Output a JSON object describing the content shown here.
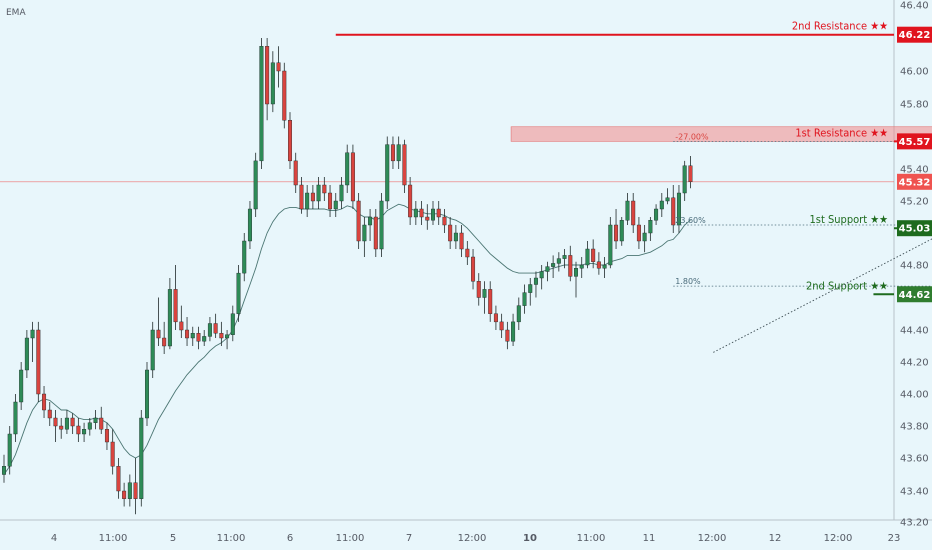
{
  "chart_data": {
    "type": "candlestick",
    "indicator_label": "EMA",
    "ylim": [
      43.2,
      46.4
    ],
    "y_ticks": [
      "46.40",
      "46.00",
      "45.80",
      "45.40",
      "45.20",
      "44.80",
      "44.40",
      "44.20",
      "44.00",
      "43.80",
      "43.60",
      "43.40",
      "43.20"
    ],
    "x_ticks": [
      "4",
      "11:00",
      "5",
      "11:00",
      "6",
      "11:00",
      "7",
      "12:00",
      "10",
      "11:00",
      "11",
      "12:00",
      "12",
      "12:00",
      "23"
    ],
    "x_ticks_bold": [
      "10"
    ],
    "current_price": {
      "value": 45.32,
      "label": "45.32",
      "color": "#ef5350"
    },
    "levels": [
      {
        "name": "2nd Resistance",
        "label": "2nd Resistance ★★",
        "value": 46.22,
        "value_label": "46.22",
        "color": "#e0141e",
        "x_from": 58,
        "badge_color": "#e0141e"
      },
      {
        "name": "1st Resistance",
        "label": "1st Resistance ★★",
        "value": 45.57,
        "value_label": "45.57",
        "color": "#e0141e",
        "x_from": 170,
        "badge_color": "#e0141e"
      },
      {
        "name": "1st Support",
        "label": "1st Support ★★",
        "value": 45.03,
        "value_label": "45.03",
        "color": "#1e6b1e",
        "x_from": 170,
        "badge_color": "#1e6b1e"
      },
      {
        "name": "2nd Support",
        "label": "2nd Support ★★",
        "value": 44.62,
        "value_label": "44.62",
        "color": "#1e6b1e",
        "x_from": 152,
        "badge_color": "#2f7d2f"
      }
    ],
    "zone": {
      "x_from": 89,
      "x_to": 212,
      "top": 45.66,
      "bottom": 45.57,
      "color": "#f28b8b"
    },
    "fib_lines": [
      {
        "label": "-27.00%",
        "value": 45.57,
        "x_from": 117,
        "x_to": 170
      },
      {
        "label": "23.60%",
        "value": 45.05,
        "x_from": 117,
        "x_to": 200
      },
      {
        "label": "1.80%",
        "value": 44.67,
        "x_from": 117,
        "x_to": 200
      }
    ],
    "trendline": {
      "x1": 124,
      "y1": 44.26,
      "x2": 175,
      "y2": 45.2
    },
    "arrow": {
      "x1": 170.5,
      "y1": 45.03,
      "x2": 174.5,
      "y2": 45.58
    },
    "candles": [
      [
        0,
        43.5,
        43.62,
        43.45,
        43.55
      ],
      [
        1,
        43.55,
        43.8,
        43.5,
        43.75
      ],
      [
        2,
        43.75,
        44.0,
        43.7,
        43.95
      ],
      [
        3,
        43.95,
        44.2,
        43.9,
        44.15
      ],
      [
        4,
        44.15,
        44.4,
        44.1,
        44.35
      ],
      [
        5,
        44.35,
        44.45,
        44.2,
        44.4
      ],
      [
        6,
        44.4,
        44.45,
        43.95,
        44.0
      ],
      [
        7,
        44.0,
        44.05,
        43.85,
        43.9
      ],
      [
        8,
        43.9,
        43.95,
        43.8,
        43.85
      ],
      [
        9,
        43.85,
        43.9,
        43.7,
        43.8
      ],
      [
        10,
        43.8,
        43.85,
        43.72,
        43.78
      ],
      [
        11,
        43.78,
        43.9,
        43.75,
        43.85
      ],
      [
        12,
        43.85,
        43.88,
        43.75,
        43.8
      ],
      [
        13,
        43.8,
        43.85,
        43.7,
        43.75
      ],
      [
        14,
        43.75,
        43.82,
        43.7,
        43.78
      ],
      [
        15,
        43.78,
        43.85,
        43.74,
        43.82
      ],
      [
        16,
        43.82,
        43.9,
        43.78,
        43.85
      ],
      [
        17,
        43.85,
        43.92,
        43.75,
        43.78
      ],
      [
        18,
        43.78,
        43.82,
        43.65,
        43.7
      ],
      [
        19,
        43.7,
        43.78,
        43.5,
        43.55
      ],
      [
        20,
        43.55,
        43.6,
        43.35,
        43.4
      ],
      [
        21,
        43.4,
        43.45,
        43.3,
        43.35
      ],
      [
        22,
        43.35,
        43.5,
        43.3,
        43.45
      ],
      [
        23,
        43.45,
        43.6,
        43.25,
        43.35
      ],
      [
        24,
        43.35,
        43.9,
        43.3,
        43.85
      ],
      [
        25,
        43.85,
        44.2,
        43.8,
        44.15
      ],
      [
        26,
        44.15,
        44.45,
        44.1,
        44.4
      ],
      [
        27,
        44.4,
        44.6,
        44.3,
        44.35
      ],
      [
        28,
        44.35,
        44.45,
        44.25,
        44.3
      ],
      [
        29,
        44.3,
        44.72,
        44.28,
        44.65
      ],
      [
        30,
        44.65,
        44.8,
        44.4,
        44.45
      ],
      [
        31,
        44.45,
        44.55,
        44.35,
        44.4
      ],
      [
        32,
        44.4,
        44.48,
        44.3,
        44.35
      ],
      [
        33,
        44.35,
        44.42,
        44.3,
        44.38
      ],
      [
        34,
        44.38,
        44.42,
        44.28,
        44.33
      ],
      [
        35,
        44.33,
        44.4,
        44.3,
        44.36
      ],
      [
        36,
        44.36,
        44.48,
        44.33,
        44.44
      ],
      [
        37,
        44.44,
        44.5,
        44.35,
        44.38
      ],
      [
        38,
        44.38,
        44.45,
        44.3,
        44.35
      ],
      [
        39,
        44.35,
        44.4,
        44.28,
        44.37
      ],
      [
        40,
        44.37,
        44.55,
        44.33,
        44.5
      ],
      [
        41,
        44.5,
        44.8,
        44.45,
        44.75
      ],
      [
        42,
        44.75,
        45.0,
        44.7,
        44.95
      ],
      [
        43,
        44.95,
        45.2,
        44.9,
        45.15
      ],
      [
        44,
        45.15,
        45.5,
        45.1,
        45.45
      ],
      [
        45,
        45.45,
        46.2,
        45.4,
        46.15
      ],
      [
        46,
        46.15,
        46.2,
        45.7,
        45.8
      ],
      [
        47,
        45.8,
        46.12,
        45.75,
        46.05
      ],
      [
        48,
        46.05,
        46.15,
        45.9,
        46.0
      ],
      [
        49,
        46.0,
        46.05,
        45.65,
        45.7
      ],
      [
        50,
        45.7,
        45.75,
        45.4,
        45.45
      ],
      [
        51,
        45.45,
        45.5,
        45.25,
        45.3
      ],
      [
        52,
        45.3,
        45.35,
        45.12,
        45.15
      ],
      [
        53,
        45.15,
        45.3,
        45.1,
        45.25
      ],
      [
        54,
        45.25,
        45.3,
        45.15,
        45.2
      ],
      [
        55,
        45.2,
        45.35,
        45.15,
        45.3
      ],
      [
        56,
        45.3,
        45.35,
        45.2,
        45.25
      ],
      [
        57,
        45.25,
        45.3,
        45.1,
        45.15
      ],
      [
        58,
        45.15,
        45.25,
        45.1,
        45.2
      ],
      [
        59,
        45.2,
        45.35,
        45.15,
        45.3
      ],
      [
        60,
        45.3,
        45.55,
        45.25,
        45.5
      ],
      [
        61,
        45.5,
        45.55,
        45.15,
        45.2
      ],
      [
        62,
        45.2,
        45.25,
        44.9,
        44.95
      ],
      [
        63,
        44.95,
        45.1,
        44.85,
        45.05
      ],
      [
        64,
        45.05,
        45.15,
        44.95,
        45.1
      ],
      [
        65,
        45.1,
        45.15,
        44.85,
        44.9
      ],
      [
        66,
        44.9,
        45.25,
        44.85,
        45.2
      ],
      [
        67,
        45.2,
        45.6,
        45.15,
        45.55
      ],
      [
        68,
        45.55,
        45.6,
        45.4,
        45.45
      ],
      [
        69,
        45.45,
        45.6,
        45.4,
        45.55
      ],
      [
        70,
        45.55,
        45.58,
        45.25,
        45.3
      ],
      [
        71,
        45.3,
        45.35,
        45.05,
        45.1
      ],
      [
        72,
        45.1,
        45.2,
        45.05,
        45.15
      ],
      [
        73,
        45.15,
        45.2,
        45.05,
        45.1
      ],
      [
        74,
        45.1,
        45.18,
        45.02,
        45.08
      ],
      [
        75,
        45.08,
        45.2,
        45.05,
        45.15
      ],
      [
        76,
        45.15,
        45.2,
        45.05,
        45.1
      ],
      [
        77,
        45.1,
        45.15,
        45.0,
        45.05
      ],
      [
        78,
        45.05,
        45.1,
        44.9,
        44.95
      ],
      [
        79,
        44.95,
        45.05,
        44.9,
        45.0
      ],
      [
        80,
        45.0,
        45.05,
        44.85,
        44.9
      ],
      [
        81,
        44.9,
        44.95,
        44.8,
        44.85
      ],
      [
        82,
        44.85,
        44.9,
        44.65,
        44.7
      ],
      [
        83,
        44.7,
        44.75,
        44.55,
        44.6
      ],
      [
        84,
        44.6,
        44.7,
        44.5,
        44.65
      ],
      [
        85,
        44.65,
        44.7,
        44.45,
        44.5
      ],
      [
        86,
        44.5,
        44.55,
        44.4,
        44.45
      ],
      [
        87,
        44.45,
        44.5,
        44.35,
        44.4
      ],
      [
        88,
        44.4,
        44.45,
        44.28,
        44.33
      ],
      [
        89,
        44.33,
        44.5,
        44.3,
        44.45
      ],
      [
        90,
        44.45,
        44.6,
        44.4,
        44.55
      ],
      [
        91,
        44.55,
        44.68,
        44.5,
        44.63
      ],
      [
        92,
        44.63,
        44.72,
        44.55,
        44.68
      ],
      [
        93,
        44.68,
        44.76,
        44.6,
        44.72
      ],
      [
        94,
        44.72,
        44.8,
        44.65,
        44.76
      ],
      [
        95,
        44.76,
        44.82,
        44.7,
        44.79
      ],
      [
        96,
        44.79,
        44.86,
        44.72,
        44.81
      ],
      [
        97,
        44.81,
        44.88,
        44.76,
        44.84
      ],
      [
        98,
        44.84,
        44.9,
        44.78,
        44.86
      ],
      [
        99,
        44.86,
        44.92,
        44.7,
        44.73
      ],
      [
        100,
        44.73,
        44.82,
        44.6,
        44.78
      ],
      [
        101,
        44.78,
        44.85,
        44.72,
        44.8
      ],
      [
        102,
        44.8,
        44.95,
        44.78,
        44.9
      ],
      [
        103,
        44.9,
        44.96,
        44.78,
        44.82
      ],
      [
        104,
        44.82,
        44.88,
        44.74,
        44.78
      ],
      [
        105,
        44.78,
        44.85,
        44.72,
        44.8
      ],
      [
        106,
        44.8,
        45.1,
        44.78,
        45.05
      ],
      [
        107,
        45.05,
        45.15,
        44.9,
        44.95
      ],
      [
        108,
        44.95,
        45.1,
        44.92,
        45.08
      ],
      [
        109,
        45.08,
        45.25,
        45.05,
        45.2
      ],
      [
        110,
        45.2,
        45.25,
        45.0,
        45.05
      ],
      [
        111,
        45.05,
        45.1,
        44.9,
        44.95
      ],
      [
        112,
        44.95,
        45.05,
        44.88,
        45.0
      ],
      [
        113,
        45.0,
        45.1,
        44.95,
        45.08
      ],
      [
        114,
        45.08,
        45.18,
        45.05,
        45.15
      ],
      [
        115,
        45.15,
        45.25,
        45.1,
        45.2
      ],
      [
        116,
        45.2,
        45.28,
        45.18,
        45.22
      ],
      [
        117,
        45.22,
        45.3,
        45.0,
        45.05
      ],
      [
        118,
        45.05,
        45.3,
        45.0,
        45.25
      ],
      [
        119,
        45.25,
        45.45,
        45.2,
        45.42
      ],
      [
        120,
        45.42,
        45.48,
        45.28,
        45.32
      ]
    ],
    "ema": [
      43.5,
      43.55,
      43.62,
      43.72,
      43.82,
      43.9,
      43.95,
      43.97,
      43.96,
      43.93,
      43.9,
      43.9,
      43.88,
      43.85,
      43.84,
      43.84,
      43.85,
      43.84,
      43.82,
      43.78,
      43.72,
      43.66,
      43.62,
      43.6,
      43.62,
      43.68,
      43.76,
      43.84,
      43.9,
      43.96,
      44.02,
      44.07,
      44.12,
      44.16,
      44.2,
      44.23,
      44.27,
      44.3,
      44.32,
      44.35,
      44.4,
      44.48,
      44.58,
      44.68,
      44.78,
      44.9,
      45.0,
      45.07,
      45.12,
      45.15,
      45.16,
      45.16,
      45.15,
      45.15,
      45.15,
      45.15,
      45.15,
      45.14,
      45.14,
      45.15,
      45.17,
      45.16,
      45.12,
      45.1,
      45.1,
      45.08,
      45.1,
      45.14,
      45.16,
      45.18,
      45.17,
      45.15,
      45.14,
      45.13,
      45.12,
      45.12,
      45.12,
      45.11,
      45.09,
      45.08,
      45.06,
      45.03,
      44.99,
      44.95,
      44.91,
      44.87,
      44.84,
      44.81,
      44.78,
      44.76,
      44.75,
      44.75,
      44.75,
      44.75,
      44.76,
      44.77,
      44.78,
      44.79,
      44.8,
      44.8,
      44.8,
      44.8,
      44.81,
      44.81,
      44.8,
      44.8,
      44.82,
      44.83,
      44.84,
      44.86,
      44.86,
      44.86,
      44.87,
      44.88,
      44.9,
      44.92,
      44.95,
      44.96,
      45.0,
      45.05,
      45.08
    ]
  }
}
